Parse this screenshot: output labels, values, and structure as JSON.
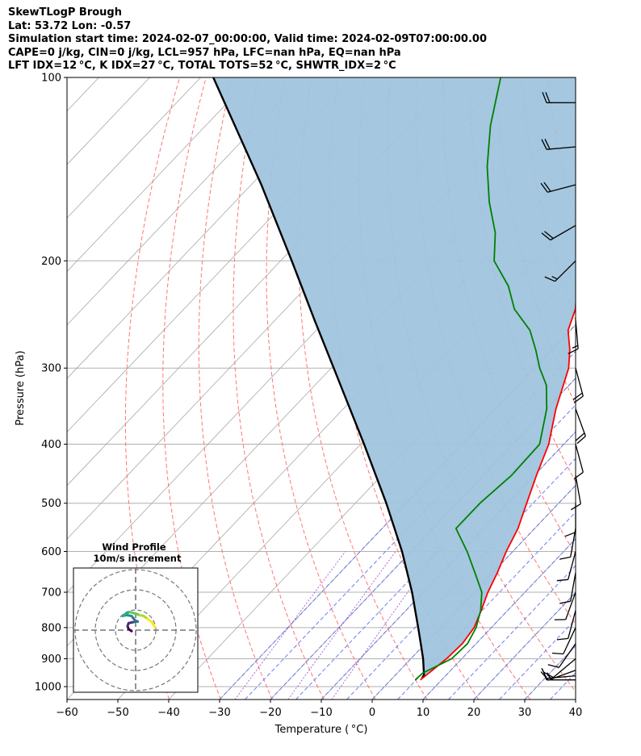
{
  "header": {
    "line1": "SkewTLogP Brough",
    "line2": "Lat: 53.72   Lon: -0.57",
    "line3": "Simulation start time: 2024-02-07_00:00:00, Valid time: 2024-02-09T07:00:00.00",
    "line4": "CAPE=0 j/kg, CIN=0 j/kg, LCL=957 hPa, LFC=nan hPa, EQ=nan hPa",
    "line5": "LFT IDX=12 °C, K IDX=27 °C, TOTAL TOTS=52 °C, SHWTR_IDX=2 °C"
  },
  "colors": {
    "temperature": "#ff0000",
    "dewpoint": "#008000",
    "parcel": "#000000",
    "cape_fill": "#a0c4de",
    "dry_adiabat": "#ff6666",
    "moist_adiabat": "#5566ee",
    "isotherm": "#a8a8a8",
    "isobar": "#b0b0b0",
    "mixing_ratio": "#9944cc"
  },
  "chart_data": {
    "type": "skewt-logp",
    "xlabel": "Temperature ( °C)",
    "ylabel": "Pressure (hPa)",
    "xlim": [
      -60,
      40
    ],
    "ylim": [
      1050,
      100
    ],
    "y_scale": "log",
    "grid": true,
    "x_ticks": [
      "−60",
      "−50",
      "−40",
      "−30",
      "−20",
      "−10",
      "0",
      "10",
      "20",
      "30",
      "40"
    ],
    "y_ticks": [
      "100",
      "200",
      "300",
      "400",
      "500",
      "600",
      "700",
      "800",
      "900",
      "1000"
    ],
    "series": [
      {
        "key": "temperature",
        "pressure_hpa": [
          975,
          950,
          900,
          850,
          800,
          750,
          700,
          650,
          600,
          550,
          500,
          450,
          400,
          350,
          300,
          280,
          260,
          240,
          220,
          200,
          180,
          160,
          140,
          120,
          110,
          100
        ],
        "temp_c": [
          5.8,
          6.2,
          7.0,
          7.3,
          6.6,
          4.8,
          2.7,
          0.9,
          -1.3,
          -3.3,
          -6.3,
          -9.6,
          -13.0,
          -18.2,
          -23.3,
          -26.5,
          -30.5,
          -33.0,
          -37.0,
          -40.5,
          -43.0,
          -46.5,
          -50.2,
          -54.5,
          -56.8,
          -58.5
        ]
      },
      {
        "key": "dewpoint",
        "pressure_hpa": [
          975,
          950,
          925,
          900,
          850,
          800,
          750,
          700,
          650,
          600,
          550,
          500,
          450,
          400,
          350,
          320,
          300,
          280,
          260,
          240,
          220,
          200,
          180,
          160,
          140,
          120,
          100
        ],
        "temp_c": [
          4.8,
          5.0,
          6.5,
          8.0,
          8.3,
          7.0,
          4.7,
          1.5,
          -3.5,
          -9.0,
          -15.5,
          -15.5,
          -14.5,
          -14.8,
          -20.0,
          -24.5,
          -29.0,
          -33.2,
          -38.0,
          -45.0,
          -50.5,
          -58.0,
          -63.0,
          -70.0,
          -77.0,
          -84.0,
          -91.0
        ]
      },
      {
        "key": "parcel",
        "pressure_hpa": [
          968,
          957,
          900,
          850,
          800,
          700,
          600,
          500,
          400,
          300,
          250,
          200,
          150,
          100
        ],
        "temp_c": [
          5.8,
          5.6,
          2.4,
          -0.9,
          -4.4,
          -12.2,
          -21.8,
          -33.9,
          -49.3,
          -69.5,
          -82.3,
          -97.8,
          -118.0,
          -147.5
        ]
      }
    ],
    "shaded": "CAPE/CIN area between parcel profile and temperature",
    "wind_barbs": [
      {
        "pressure_hpa": 975,
        "dir_deg": 270,
        "speed_kt": 10
      },
      {
        "pressure_hpa": 960,
        "dir_deg": 265,
        "speed_kt": 15
      },
      {
        "pressure_hpa": 940,
        "dir_deg": 250,
        "speed_kt": 15
      },
      {
        "pressure_hpa": 900,
        "dir_deg": 230,
        "speed_kt": 10
      },
      {
        "pressure_hpa": 850,
        "dir_deg": 215,
        "speed_kt": 10
      },
      {
        "pressure_hpa": 800,
        "dir_deg": 205,
        "speed_kt": 10
      },
      {
        "pressure_hpa": 750,
        "dir_deg": 195,
        "speed_kt": 10
      },
      {
        "pressure_hpa": 700,
        "dir_deg": 200,
        "speed_kt": 10
      },
      {
        "pressure_hpa": 650,
        "dir_deg": 190,
        "speed_kt": 10
      },
      {
        "pressure_hpa": 600,
        "dir_deg": 195,
        "speed_kt": 10
      },
      {
        "pressure_hpa": 550,
        "dir_deg": 190,
        "speed_kt": 10
      },
      {
        "pressure_hpa": 500,
        "dir_deg": 180,
        "speed_kt": 10
      },
      {
        "pressure_hpa": 450,
        "dir_deg": 170,
        "speed_kt": 10
      },
      {
        "pressure_hpa": 400,
        "dir_deg": 165,
        "speed_kt": 10
      },
      {
        "pressure_hpa": 350,
        "dir_deg": 160,
        "speed_kt": 20
      },
      {
        "pressure_hpa": 300,
        "dir_deg": 165,
        "speed_kt": 20
      },
      {
        "pressure_hpa": 250,
        "dir_deg": 175,
        "speed_kt": 15
      },
      {
        "pressure_hpa": 200,
        "dir_deg": 225,
        "speed_kt": 15
      },
      {
        "pressure_hpa": 175,
        "dir_deg": 240,
        "speed_kt": 20
      },
      {
        "pressure_hpa": 150,
        "dir_deg": 255,
        "speed_kt": 20
      },
      {
        "pressure_hpa": 130,
        "dir_deg": 265,
        "speed_kt": 20
      },
      {
        "pressure_hpa": 110,
        "dir_deg": 270,
        "speed_kt": 20
      }
    ],
    "wind_profile_inset": {
      "title": "Wind Profile",
      "subtitle": "10m/s increment",
      "ring_increment_ms": 10,
      "colormap": "viridis",
      "hodograph_uv_ms": [
        [
          -2,
          -0.5
        ],
        [
          -3.5,
          0.5
        ],
        [
          -4,
          2
        ],
        [
          -3.5,
          3.5
        ],
        [
          -1,
          4
        ],
        [
          0.5,
          4.5
        ],
        [
          1,
          4.2
        ],
        [
          0,
          4.5
        ],
        [
          -2,
          7
        ],
        [
          -4.5,
          7.5
        ],
        [
          -6.5,
          7
        ],
        [
          -5,
          8
        ],
        [
          -3,
          9
        ],
        [
          -1,
          8.5
        ],
        [
          2,
          7.5
        ],
        [
          4,
          7
        ],
        [
          6,
          5.5
        ],
        [
          8,
          4
        ],
        [
          9.5,
          1.5
        ]
      ]
    }
  }
}
